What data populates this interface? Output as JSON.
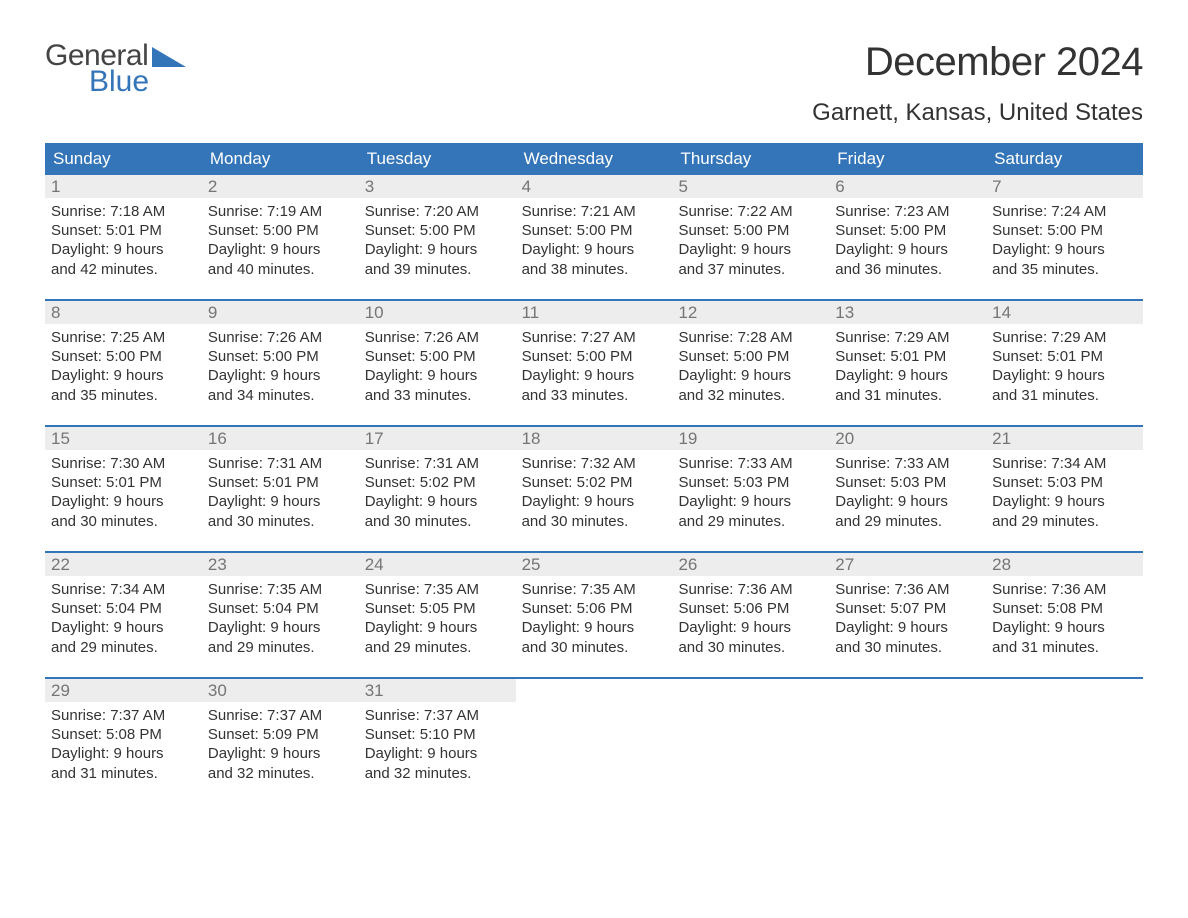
{
  "logo": {
    "line1": "General",
    "line2": "Blue"
  },
  "title": "December 2024",
  "location": "Garnett, Kansas, United States",
  "colors": {
    "accent": "#3375b8",
    "header_text": "#ffffff",
    "daynum_bg": "#ededed",
    "daynum_text": "#757575",
    "body_text": "#333333",
    "logo_gray": "#444444",
    "background": "#ffffff"
  },
  "typography": {
    "title_fontsize": 40,
    "location_fontsize": 24,
    "dayheader_fontsize": 17,
    "daynum_fontsize": 17,
    "body_fontsize": 15,
    "logo_fontsize": 30
  },
  "day_headers": [
    "Sunday",
    "Monday",
    "Tuesday",
    "Wednesday",
    "Thursday",
    "Friday",
    "Saturday"
  ],
  "weeks": [
    [
      {
        "n": "1",
        "sunrise": "Sunrise: 7:18 AM",
        "sunset": "Sunset: 5:01 PM",
        "d1": "Daylight: 9 hours",
        "d2": "and 42 minutes."
      },
      {
        "n": "2",
        "sunrise": "Sunrise: 7:19 AM",
        "sunset": "Sunset: 5:00 PM",
        "d1": "Daylight: 9 hours",
        "d2": "and 40 minutes."
      },
      {
        "n": "3",
        "sunrise": "Sunrise: 7:20 AM",
        "sunset": "Sunset: 5:00 PM",
        "d1": "Daylight: 9 hours",
        "d2": "and 39 minutes."
      },
      {
        "n": "4",
        "sunrise": "Sunrise: 7:21 AM",
        "sunset": "Sunset: 5:00 PM",
        "d1": "Daylight: 9 hours",
        "d2": "and 38 minutes."
      },
      {
        "n": "5",
        "sunrise": "Sunrise: 7:22 AM",
        "sunset": "Sunset: 5:00 PM",
        "d1": "Daylight: 9 hours",
        "d2": "and 37 minutes."
      },
      {
        "n": "6",
        "sunrise": "Sunrise: 7:23 AM",
        "sunset": "Sunset: 5:00 PM",
        "d1": "Daylight: 9 hours",
        "d2": "and 36 minutes."
      },
      {
        "n": "7",
        "sunrise": "Sunrise: 7:24 AM",
        "sunset": "Sunset: 5:00 PM",
        "d1": "Daylight: 9 hours",
        "d2": "and 35 minutes."
      }
    ],
    [
      {
        "n": "8",
        "sunrise": "Sunrise: 7:25 AM",
        "sunset": "Sunset: 5:00 PM",
        "d1": "Daylight: 9 hours",
        "d2": "and 35 minutes."
      },
      {
        "n": "9",
        "sunrise": "Sunrise: 7:26 AM",
        "sunset": "Sunset: 5:00 PM",
        "d1": "Daylight: 9 hours",
        "d2": "and 34 minutes."
      },
      {
        "n": "10",
        "sunrise": "Sunrise: 7:26 AM",
        "sunset": "Sunset: 5:00 PM",
        "d1": "Daylight: 9 hours",
        "d2": "and 33 minutes."
      },
      {
        "n": "11",
        "sunrise": "Sunrise: 7:27 AM",
        "sunset": "Sunset: 5:00 PM",
        "d1": "Daylight: 9 hours",
        "d2": "and 33 minutes."
      },
      {
        "n": "12",
        "sunrise": "Sunrise: 7:28 AM",
        "sunset": "Sunset: 5:00 PM",
        "d1": "Daylight: 9 hours",
        "d2": "and 32 minutes."
      },
      {
        "n": "13",
        "sunrise": "Sunrise: 7:29 AM",
        "sunset": "Sunset: 5:01 PM",
        "d1": "Daylight: 9 hours",
        "d2": "and 31 minutes."
      },
      {
        "n": "14",
        "sunrise": "Sunrise: 7:29 AM",
        "sunset": "Sunset: 5:01 PM",
        "d1": "Daylight: 9 hours",
        "d2": "and 31 minutes."
      }
    ],
    [
      {
        "n": "15",
        "sunrise": "Sunrise: 7:30 AM",
        "sunset": "Sunset: 5:01 PM",
        "d1": "Daylight: 9 hours",
        "d2": "and 30 minutes."
      },
      {
        "n": "16",
        "sunrise": "Sunrise: 7:31 AM",
        "sunset": "Sunset: 5:01 PM",
        "d1": "Daylight: 9 hours",
        "d2": "and 30 minutes."
      },
      {
        "n": "17",
        "sunrise": "Sunrise: 7:31 AM",
        "sunset": "Sunset: 5:02 PM",
        "d1": "Daylight: 9 hours",
        "d2": "and 30 minutes."
      },
      {
        "n": "18",
        "sunrise": "Sunrise: 7:32 AM",
        "sunset": "Sunset: 5:02 PM",
        "d1": "Daylight: 9 hours",
        "d2": "and 30 minutes."
      },
      {
        "n": "19",
        "sunrise": "Sunrise: 7:33 AM",
        "sunset": "Sunset: 5:03 PM",
        "d1": "Daylight: 9 hours",
        "d2": "and 29 minutes."
      },
      {
        "n": "20",
        "sunrise": "Sunrise: 7:33 AM",
        "sunset": "Sunset: 5:03 PM",
        "d1": "Daylight: 9 hours",
        "d2": "and 29 minutes."
      },
      {
        "n": "21",
        "sunrise": "Sunrise: 7:34 AM",
        "sunset": "Sunset: 5:03 PM",
        "d1": "Daylight: 9 hours",
        "d2": "and 29 minutes."
      }
    ],
    [
      {
        "n": "22",
        "sunrise": "Sunrise: 7:34 AM",
        "sunset": "Sunset: 5:04 PM",
        "d1": "Daylight: 9 hours",
        "d2": "and 29 minutes."
      },
      {
        "n": "23",
        "sunrise": "Sunrise: 7:35 AM",
        "sunset": "Sunset: 5:04 PM",
        "d1": "Daylight: 9 hours",
        "d2": "and 29 minutes."
      },
      {
        "n": "24",
        "sunrise": "Sunrise: 7:35 AM",
        "sunset": "Sunset: 5:05 PM",
        "d1": "Daylight: 9 hours",
        "d2": "and 29 minutes."
      },
      {
        "n": "25",
        "sunrise": "Sunrise: 7:35 AM",
        "sunset": "Sunset: 5:06 PM",
        "d1": "Daylight: 9 hours",
        "d2": "and 30 minutes."
      },
      {
        "n": "26",
        "sunrise": "Sunrise: 7:36 AM",
        "sunset": "Sunset: 5:06 PM",
        "d1": "Daylight: 9 hours",
        "d2": "and 30 minutes."
      },
      {
        "n": "27",
        "sunrise": "Sunrise: 7:36 AM",
        "sunset": "Sunset: 5:07 PM",
        "d1": "Daylight: 9 hours",
        "d2": "and 30 minutes."
      },
      {
        "n": "28",
        "sunrise": "Sunrise: 7:36 AM",
        "sunset": "Sunset: 5:08 PM",
        "d1": "Daylight: 9 hours",
        "d2": "and 31 minutes."
      }
    ],
    [
      {
        "n": "29",
        "sunrise": "Sunrise: 7:37 AM",
        "sunset": "Sunset: 5:08 PM",
        "d1": "Daylight: 9 hours",
        "d2": "and 31 minutes."
      },
      {
        "n": "30",
        "sunrise": "Sunrise: 7:37 AM",
        "sunset": "Sunset: 5:09 PM",
        "d1": "Daylight: 9 hours",
        "d2": "and 32 minutes."
      },
      {
        "n": "31",
        "sunrise": "Sunrise: 7:37 AM",
        "sunset": "Sunset: 5:10 PM",
        "d1": "Daylight: 9 hours",
        "d2": "and 32 minutes."
      },
      {
        "blank": true
      },
      {
        "blank": true
      },
      {
        "blank": true
      },
      {
        "blank": true
      }
    ]
  ]
}
